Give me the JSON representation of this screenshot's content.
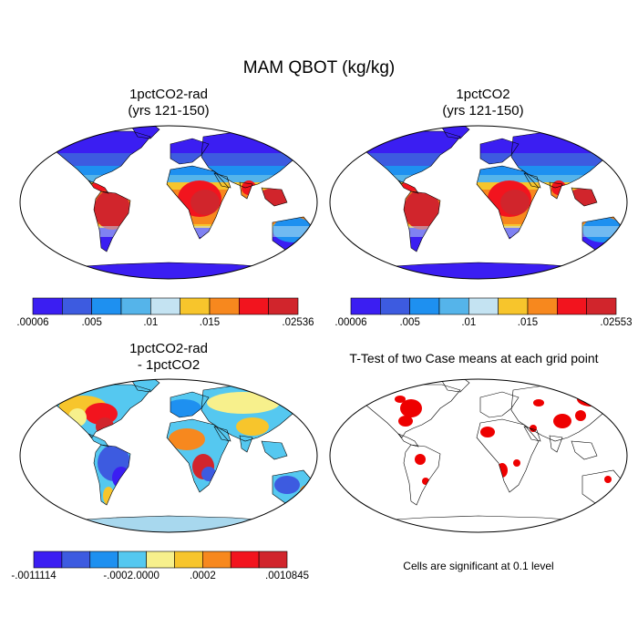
{
  "main_title": "MAM QBOT (kg/kg)",
  "panels": [
    {
      "id": "rad",
      "title_lines": [
        "1pctCO2-rad",
        "(yrs 121-150)"
      ]
    },
    {
      "id": "ctl",
      "title_lines": [
        "1pctCO2",
        "(yrs 121-150)"
      ]
    },
    {
      "id": "diff",
      "title_lines": [
        "1pctCO2-rad",
        "- 1pctCO2"
      ]
    },
    {
      "id": "ttest",
      "title_lines": [
        "T-Test of two Case means at each grid point"
      ]
    }
  ],
  "colorbars": {
    "rad": {
      "colors": [
        "#3b1ef2",
        "#3d5be0",
        "#1e90f0",
        "#55b4ea",
        "#c4e3f2",
        "#f7c52c",
        "#f7881e",
        "#f2141e",
        "#d1252c"
      ],
      "labels": [
        ".00006",
        ".005",
        ".01",
        ".015",
        ".02536"
      ],
      "label_boundaries": [
        0,
        2,
        4,
        6,
        9
      ]
    },
    "ctl": {
      "colors": [
        "#3b1ef2",
        "#3d5be0",
        "#1e90f0",
        "#55b4ea",
        "#c4e3f2",
        "#f7c52c",
        "#f7881e",
        "#f2141e",
        "#d1252c"
      ],
      "labels": [
        ".00006",
        ".005",
        ".01",
        ".015",
        ".02553"
      ],
      "label_boundaries": [
        0,
        2,
        4,
        6,
        9
      ]
    },
    "diff": {
      "colors": [
        "#3b1ef2",
        "#3d5be0",
        "#1e90f0",
        "#55c8f0",
        "#f7f08c",
        "#f7c52c",
        "#f7881e",
        "#f2141e",
        "#d1252c"
      ],
      "labels": [
        "-.0011114",
        "-.0002",
        ".0000",
        ".0002",
        ".0010845"
      ],
      "label_boundaries": [
        0,
        3,
        4,
        6,
        9
      ]
    }
  },
  "ttest_note": "Cells are significant at 0.1 level",
  "colors": {
    "ocean": "#ffffff",
    "ttest_sig": "#ee0000",
    "antarctica_cold": "#3b1ef2",
    "antarctica_diff": "#a8d8ee"
  }
}
